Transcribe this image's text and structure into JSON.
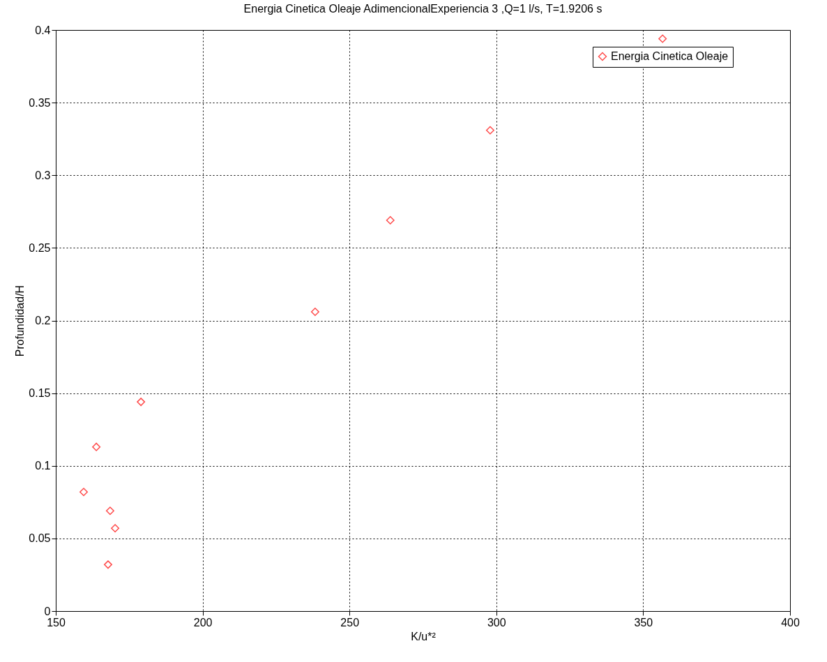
{
  "chart_data": {
    "type": "scatter",
    "title": "Energia Cinetica Oleaje AdimencionalExperiencia 3 ,Q=1 l/s, T=1.9206 s",
    "xlabel": "K/u*²",
    "ylabel": "Profundidad/H",
    "series": [
      {
        "name": "Energia Cinetica Oleaje",
        "color": "#ff0000",
        "x": [
          159.5,
          163.8,
          179.0,
          168.5,
          170.2,
          167.8,
          238.3,
          263.9,
          297.9,
          356.6
        ],
        "values": [
          0.082,
          0.113,
          0.144,
          0.069,
          0.057,
          0.032,
          0.206,
          0.269,
          0.331,
          0.394
        ]
      }
    ],
    "xlim": [
      150,
      400
    ],
    "xticks": [
      150,
      200,
      250,
      300,
      350,
      400
    ],
    "ylim": [
      0,
      0.4
    ],
    "yticks": [
      0,
      0.05,
      0.1,
      0.15,
      0.2,
      0.25,
      0.3,
      0.35,
      0.4
    ],
    "grid": true,
    "legend": "top right",
    "marker": "diamond"
  }
}
